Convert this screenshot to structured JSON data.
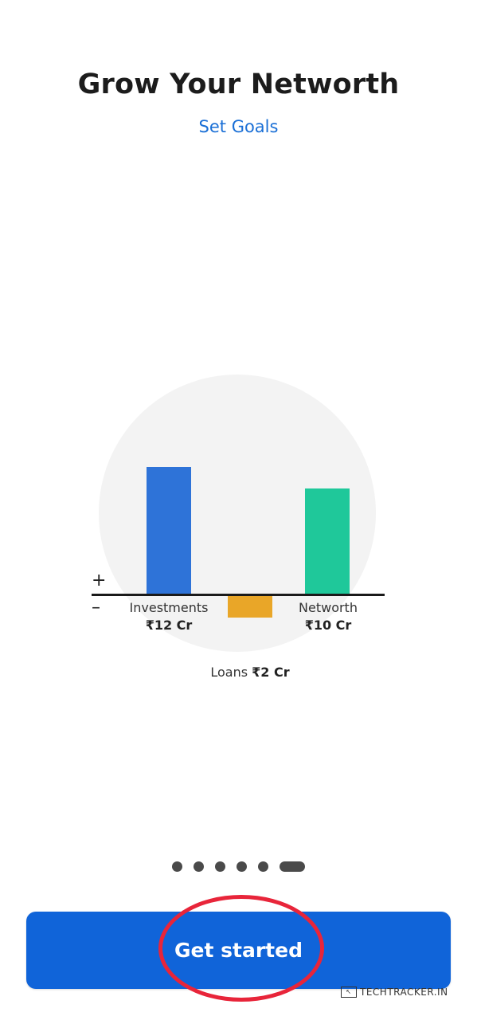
{
  "header": {
    "title": "Grow Your Networth",
    "subtitle": "Set Goals"
  },
  "signs": {
    "plus": "+",
    "minus": "–"
  },
  "chart_data": {
    "type": "bar",
    "categories": [
      "Investments",
      "Loans",
      "Networth"
    ],
    "values": [
      12,
      -2,
      10
    ],
    "value_labels": [
      "₹12 Cr",
      "₹2 Cr",
      "₹10 Cr"
    ],
    "unit": "Cr",
    "colors": [
      "#2e73d8",
      "#e9a628",
      "#1fc89a"
    ],
    "title": "",
    "xlabel": "",
    "ylabel": ""
  },
  "carousel": {
    "total": 6,
    "active_index": 5
  },
  "cta": {
    "label": "Get started"
  },
  "watermark": {
    "text": "TECHTRACKER.IN",
    "icon": "cursor-icon"
  },
  "colors": {
    "accent": "#1064d9",
    "annotation": "#e8253a",
    "subtitle": "#1a6fd6"
  }
}
